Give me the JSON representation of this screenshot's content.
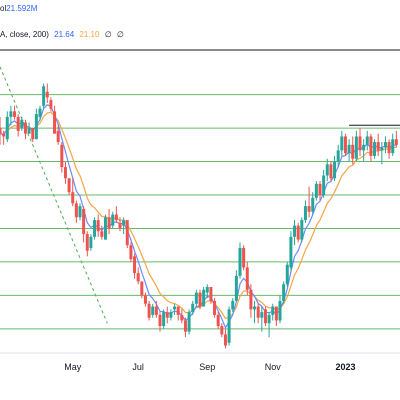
{
  "legend": {
    "row1": {
      "text": "ol",
      "value": "21.592M",
      "value_color": "#2962ff"
    },
    "row2": {
      "name": "A, close, 200)",
      "value_a": "21.64",
      "value_b": "21.10",
      "symbol_a": "∅",
      "symbol_b": "∅",
      "color_a": "#2962ff",
      "color_b": "#f7a543"
    }
  },
  "colors": {
    "up": "#26a69a",
    "down": "#ef5350",
    "ma_fast": "#6b8cff",
    "ma_slow": "#f7a543",
    "fib_lines": "#66bb6a",
    "trend_line": "#4caf50",
    "resistance": "#131722"
  },
  "chart_data": {
    "type": "candlestick",
    "x_labels": [
      "May",
      "Jul",
      "Sep",
      "Nov",
      "2023"
    ],
    "grid": false,
    "fib_levels": [
      88,
      76,
      64,
      52,
      40,
      28,
      16,
      4
    ],
    "trend_line": {
      "from": [
        -100,
        98
      ],
      "to": [
        -41,
        6
      ]
    },
    "resistance_line": {
      "from": [
        92,
        77
      ],
      "to": [
        120,
        77
      ]
    },
    "top_line": {
      "from": [
        -100,
        104
      ],
      "to": [
        120,
        104
      ]
    },
    "candles": [
      [
        -100,
        76,
        80,
        70,
        74
      ],
      [
        -98,
        74,
        75,
        70,
        73
      ],
      [
        -96,
        72,
        82,
        71,
        80
      ],
      [
        -94,
        80,
        84,
        77,
        82
      ],
      [
        -92,
        82,
        84,
        79,
        80
      ],
      [
        -90,
        80,
        81,
        73,
        75
      ],
      [
        -88,
        76,
        80,
        75,
        79
      ],
      [
        -86,
        78,
        79,
        72,
        74
      ],
      [
        -84,
        74,
        78,
        74,
        76
      ],
      [
        -82,
        76,
        76,
        71,
        72
      ],
      [
        -80,
        72,
        83,
        72,
        81
      ],
      [
        -78,
        80,
        84,
        79,
        83
      ],
      [
        -76,
        84,
        92,
        83,
        91
      ],
      [
        -74,
        89,
        92,
        85,
        87
      ],
      [
        -72,
        86,
        87,
        82,
        83
      ],
      [
        -70,
        82,
        84,
        74,
        74
      ],
      [
        -68,
        75,
        77,
        70,
        71
      ],
      [
        -66,
        70,
        71,
        60,
        62
      ],
      [
        -64,
        62,
        64,
        56,
        58
      ],
      [
        -62,
        58,
        58,
        52,
        53
      ],
      [
        -60,
        53,
        58,
        48,
        49
      ],
      [
        -58,
        49,
        50,
        42,
        44
      ],
      [
        -56,
        44,
        49,
        43,
        48
      ],
      [
        -54,
        47,
        48,
        35,
        38
      ],
      [
        -52,
        38,
        39,
        30,
        32
      ],
      [
        -50,
        33,
        38,
        32,
        37
      ],
      [
        -48,
        37,
        44,
        36,
        43
      ],
      [
        -46,
        43,
        45,
        37,
        39
      ],
      [
        -44,
        39,
        41,
        36,
        37
      ],
      [
        -42,
        36,
        45,
        36,
        44
      ],
      [
        -40,
        44,
        47,
        38,
        40
      ],
      [
        -38,
        41,
        46,
        40,
        45
      ],
      [
        -36,
        45,
        48,
        42,
        43
      ],
      [
        -34,
        42,
        44,
        39,
        40
      ],
      [
        -32,
        41,
        44,
        38,
        43
      ],
      [
        -30,
        43,
        43,
        33,
        34
      ],
      [
        -28,
        34,
        35,
        28,
        29
      ],
      [
        -26,
        30,
        31,
        22,
        24
      ],
      [
        -24,
        24,
        26,
        20,
        21
      ],
      [
        -22,
        21,
        21,
        15,
        16
      ],
      [
        -20,
        16,
        17,
        12,
        13
      ],
      [
        -18,
        13,
        14,
        7,
        8
      ],
      [
        -16,
        9,
        13,
        8,
        12
      ],
      [
        -14,
        12,
        14,
        8,
        9
      ],
      [
        -12,
        9,
        10,
        3,
        5
      ],
      [
        -10,
        5,
        11,
        4,
        10
      ],
      [
        -8,
        10,
        12,
        6,
        8
      ],
      [
        -6,
        8,
        11,
        7,
        10
      ],
      [
        -4,
        11,
        13,
        9,
        12
      ],
      [
        -2,
        12,
        12,
        7,
        9
      ],
      [
        0,
        9,
        11,
        6,
        7
      ],
      [
        2,
        7,
        8,
        1,
        3
      ],
      [
        4,
        3,
        11,
        2,
        10
      ],
      [
        6,
        10,
        14,
        9,
        13
      ],
      [
        8,
        13,
        18,
        12,
        17
      ],
      [
        10,
        17,
        18,
        11,
        12
      ],
      [
        12,
        12,
        19,
        12,
        18
      ],
      [
        14,
        17,
        20,
        15,
        19
      ],
      [
        16,
        19,
        19,
        13,
        14
      ],
      [
        18,
        14,
        15,
        8,
        9
      ],
      [
        20,
        9,
        10,
        4,
        5
      ],
      [
        22,
        5,
        6,
        1,
        2
      ],
      [
        24,
        2,
        4,
        -3,
        -2
      ],
      [
        26,
        -1,
        12,
        -2,
        11
      ],
      [
        28,
        11,
        15,
        10,
        14
      ],
      [
        30,
        14,
        25,
        14,
        23
      ],
      [
        32,
        23,
        35,
        22,
        33
      ],
      [
        34,
        33,
        34,
        25,
        26
      ],
      [
        36,
        26,
        28,
        16,
        18
      ],
      [
        38,
        18,
        20,
        8,
        11
      ],
      [
        40,
        11,
        14,
        6,
        12
      ],
      [
        42,
        12,
        13,
        6,
        8
      ],
      [
        44,
        8,
        12,
        3,
        10
      ],
      [
        46,
        11,
        12,
        5,
        6
      ],
      [
        48,
        6,
        10,
        1,
        9
      ],
      [
        50,
        9,
        13,
        7,
        12
      ],
      [
        52,
        12,
        12,
        5,
        7
      ],
      [
        54,
        7,
        16,
        6,
        14
      ],
      [
        56,
        14,
        21,
        13,
        20
      ],
      [
        58,
        20,
        28,
        19,
        27
      ],
      [
        60,
        26,
        39,
        25,
        37
      ],
      [
        62,
        37,
        43,
        34,
        41
      ],
      [
        64,
        41,
        42,
        35,
        36
      ],
      [
        66,
        36,
        44,
        35,
        43
      ],
      [
        68,
        43,
        50,
        42,
        48
      ],
      [
        70,
        48,
        55,
        44,
        46
      ],
      [
        72,
        46,
        53,
        45,
        51
      ],
      [
        74,
        51,
        57,
        50,
        56
      ],
      [
        76,
        56,
        57,
        50,
        52
      ],
      [
        78,
        52,
        61,
        51,
        59
      ],
      [
        80,
        59,
        65,
        57,
        63
      ],
      [
        82,
        63,
        64,
        57,
        58
      ],
      [
        84,
        58,
        66,
        57,
        64
      ],
      [
        86,
        64,
        70,
        62,
        68
      ],
      [
        88,
        68,
        75,
        66,
        73
      ],
      [
        90,
        73,
        74,
        66,
        67
      ],
      [
        92,
        67,
        72,
        64,
        70
      ],
      [
        94,
        70,
        73,
        63,
        65
      ],
      [
        96,
        65,
        75,
        64,
        73
      ],
      [
        98,
        73,
        76,
        66,
        68
      ],
      [
        100,
        68,
        72,
        64,
        70
      ],
      [
        102,
        70,
        75,
        68,
        73
      ],
      [
        104,
        73,
        74,
        64,
        66
      ],
      [
        106,
        66,
        72,
        65,
        71
      ],
      [
        108,
        71,
        74,
        66,
        68
      ],
      [
        110,
        68,
        71,
        63,
        69
      ],
      [
        112,
        69,
        73,
        67,
        71
      ],
      [
        114,
        71,
        72,
        65,
        67
      ],
      [
        116,
        67,
        74,
        66,
        72
      ],
      [
        118,
        72,
        75,
        69,
        70
      ]
    ]
  }
}
